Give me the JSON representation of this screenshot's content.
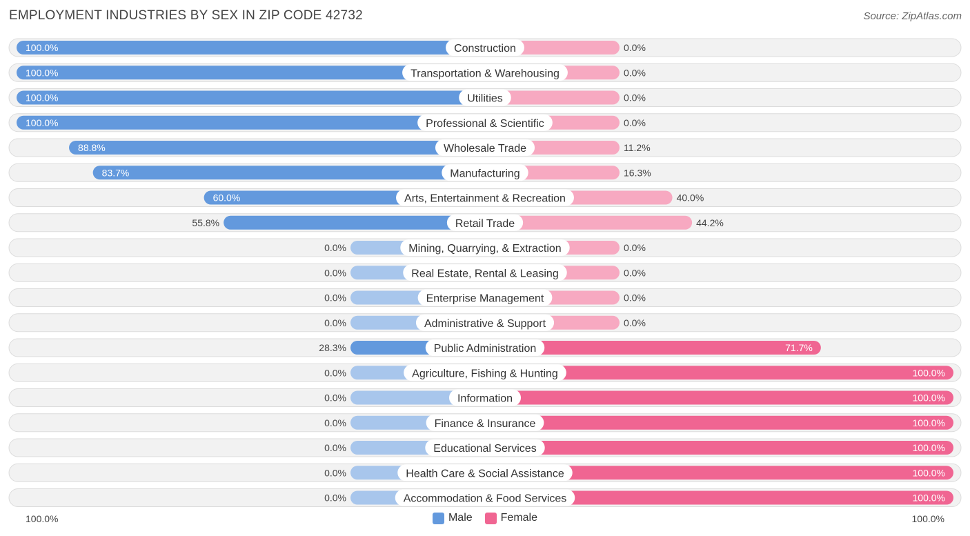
{
  "header": {
    "title": "EMPLOYMENT INDUSTRIES BY SEX IN ZIP CODE 42732",
    "source": "Source: ZipAtlas.com"
  },
  "axis": {
    "left_label": "100.0%",
    "right_label": "100.0%"
  },
  "legend": {
    "male": "Male",
    "female": "Female"
  },
  "colors": {
    "male_strong": "#6399dd",
    "male_light": "#a8c6ec",
    "female_strong": "#f06592",
    "female_light": "#f7a9c1",
    "row_bg": "#f2f2f2",
    "row_border": "#dcdcdc"
  },
  "chart_data": {
    "type": "bar",
    "orientation": "horizontal-diverging",
    "title": "EMPLOYMENT INDUSTRIES BY SEX IN ZIP CODE 42732",
    "xlim": [
      -100,
      100
    ],
    "series_names": [
      "Male",
      "Female"
    ],
    "categories": [
      "Construction",
      "Transportation & Warehousing",
      "Utilities",
      "Professional & Scientific",
      "Wholesale Trade",
      "Manufacturing",
      "Arts, Entertainment & Recreation",
      "Retail Trade",
      "Mining, Quarrying, & Extraction",
      "Real Estate, Rental & Leasing",
      "Enterprise Management",
      "Administrative & Support",
      "Public Administration",
      "Agriculture, Fishing & Hunting",
      "Information",
      "Finance & Insurance",
      "Educational Services",
      "Health Care & Social Assistance",
      "Accommodation & Food Services"
    ],
    "male": [
      100.0,
      100.0,
      100.0,
      100.0,
      88.8,
      83.7,
      60.0,
      55.8,
      0.0,
      0.0,
      0.0,
      0.0,
      28.3,
      0.0,
      0.0,
      0.0,
      0.0,
      0.0,
      0.0
    ],
    "female": [
      0.0,
      0.0,
      0.0,
      0.0,
      11.2,
      16.3,
      40.0,
      44.2,
      0.0,
      0.0,
      0.0,
      0.0,
      71.7,
      100.0,
      100.0,
      100.0,
      100.0,
      100.0,
      100.0
    ],
    "male_labels": [
      "100.0%",
      "100.0%",
      "100.0%",
      "100.0%",
      "88.8%",
      "83.7%",
      "60.0%",
      "55.8%",
      "0.0%",
      "0.0%",
      "0.0%",
      "0.0%",
      "28.3%",
      "0.0%",
      "0.0%",
      "0.0%",
      "0.0%",
      "0.0%",
      "0.0%"
    ],
    "female_labels": [
      "0.0%",
      "0.0%",
      "0.0%",
      "0.0%",
      "11.2%",
      "16.3%",
      "40.0%",
      "44.2%",
      "0.0%",
      "0.0%",
      "0.0%",
      "0.0%",
      "71.7%",
      "100.0%",
      "100.0%",
      "100.0%",
      "100.0%",
      "100.0%",
      "100.0%"
    ]
  }
}
